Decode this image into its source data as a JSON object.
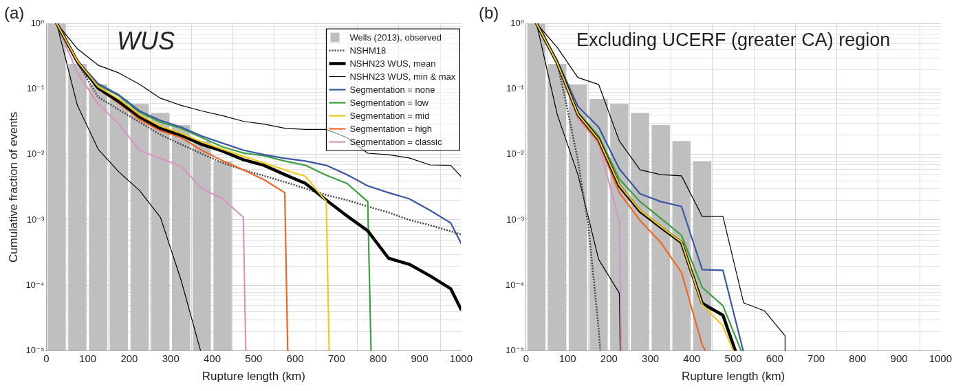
{
  "chart_data": [
    {
      "type": "line",
      "title": "(a)",
      "annotations": [
        "WUS"
      ],
      "xlabel": "Rupture length (km)",
      "ylabel": "Cumulative fraction of events",
      "xlim": [
        0,
        1000
      ],
      "xticks": [
        0,
        100,
        200,
        300,
        400,
        500,
        600,
        700,
        800,
        900,
        1000
      ],
      "ylim": [
        1e-05,
        1
      ],
      "yticks": [
        {
          "value": 1,
          "label": "10⁰"
        },
        {
          "value": 0.1,
          "label": "10⁻¹"
        },
        {
          "value": 0.01,
          "label": "10⁻²"
        },
        {
          "value": 0.001,
          "label": "10⁻³"
        },
        {
          "value": 0.0001,
          "label": "10⁻⁴"
        },
        {
          "value": 1e-05,
          "label": "10⁻⁵"
        }
      ],
      "log": true,
      "grid": true,
      "legend": "top right",
      "marker": "none",
      "series": [
        {
          "name": "Wells (2013), observed",
          "type": "bar",
          "color": "#bfbfbf",
          "x": [
            25,
            75,
            125,
            175,
            225,
            275,
            325,
            375,
            425
          ],
          "values": [
            1,
            0.24,
            0.117,
            0.07,
            0.059,
            0.043,
            0.028,
            0.016,
            0.0078
          ]
        },
        {
          "name": "NSHM18",
          "color": "#444444",
          "line_style": "dotted",
          "x": [
            25,
            75,
            125,
            175,
            225,
            275,
            325,
            375,
            425,
            475,
            525,
            575,
            625,
            675,
            725,
            775,
            825,
            875,
            925,
            975,
            1000
          ],
          "values": [
            1,
            0.25,
            0.075,
            0.048,
            0.031,
            0.02,
            0.0142,
            0.0102,
            0.0074,
            0.0058,
            0.0047,
            0.0038,
            0.003,
            0.0024,
            0.002,
            0.0016,
            0.0013,
            0.001,
            0.00083,
            0.00067,
            0.0006
          ]
        },
        {
          "name": "NSHN23 WUS, mean",
          "color": "#000000",
          "x": [
            25,
            75,
            125,
            175,
            225,
            275,
            325,
            375,
            425,
            475,
            525,
            575,
            625,
            675,
            725,
            775,
            825,
            875,
            925,
            975,
            1000
          ],
          "values": [
            1,
            0.26,
            0.103,
            0.064,
            0.0375,
            0.025,
            0.0196,
            0.0142,
            0.0112,
            0.0083,
            0.0068,
            0.0049,
            0.0036,
            0.002,
            0.00115,
            0.00068,
            0.00026,
            0.00021,
            0.00014,
            8.9e-05,
            4.3e-05
          ]
        },
        {
          "name": "NSHN23 WUS, min & max",
          "color": "#000000",
          "x": [
            25,
            75,
            125,
            175,
            225,
            275,
            325,
            375,
            425,
            475,
            525,
            575,
            625,
            675,
            725,
            775,
            825,
            875,
            925,
            975,
            1000
          ],
          "values": [
            1,
            0.41,
            0.23,
            0.175,
            0.117,
            0.072,
            0.056,
            0.046,
            0.039,
            0.032,
            0.029,
            0.025,
            0.024,
            0.024,
            0.018,
            0.0104,
            0.0099,
            0.0088,
            0.0069,
            0.0068,
            0.0046
          ]
        },
        {
          "color": "#000000",
          "x": [
            25,
            75,
            125,
            175,
            225,
            275,
            325,
            372
          ],
          "values": [
            1,
            0.056,
            0.012,
            0.0054,
            0.0028,
            0.0011,
            0.00012,
            1e-05
          ]
        },
        {
          "name": "Segmentation = none",
          "color": "#3a56a5",
          "x": [
            25,
            75,
            125,
            175,
            225,
            275,
            325,
            375,
            425,
            475,
            525,
            575,
            625,
            675,
            725,
            775,
            825,
            875,
            925,
            975,
            1000
          ],
          "values": [
            1,
            0.27,
            0.12,
            0.081,
            0.046,
            0.033,
            0.026,
            0.019,
            0.0148,
            0.0116,
            0.0099,
            0.0087,
            0.0079,
            0.0068,
            0.0049,
            0.0033,
            0.0026,
            0.0021,
            0.0014,
            0.0009,
            0.00044
          ]
        },
        {
          "name": "Segmentation = low",
          "color": "#3aa040",
          "x": [
            25,
            75,
            125,
            175,
            225,
            275,
            325,
            375,
            425,
            475,
            525,
            575,
            625,
            675,
            725,
            775,
            783
          ],
          "values": [
            1,
            0.27,
            0.115,
            0.078,
            0.044,
            0.031,
            0.025,
            0.018,
            0.013,
            0.0105,
            0.0095,
            0.0079,
            0.0068,
            0.0048,
            0.0036,
            0.0019,
            1e-05
          ]
        },
        {
          "name": "Segmentation = mid",
          "color": "#f2c81c",
          "x": [
            25,
            75,
            125,
            175,
            225,
            275,
            325,
            375,
            425,
            475,
            525,
            575,
            625,
            675,
            682
          ],
          "values": [
            1,
            0.265,
            0.108,
            0.07,
            0.04,
            0.027,
            0.021,
            0.0155,
            0.012,
            0.0093,
            0.0074,
            0.0058,
            0.0046,
            0.0019,
            1e-05
          ]
        },
        {
          "name": "Segmentation = high",
          "color": "#f26522",
          "x": [
            25,
            75,
            125,
            175,
            225,
            275,
            325,
            375,
            425,
            475,
            525,
            575,
            582
          ],
          "values": [
            1,
            0.25,
            0.1,
            0.06,
            0.034,
            0.023,
            0.018,
            0.0115,
            0.008,
            0.0058,
            0.0041,
            0.0026,
            1e-05
          ]
        },
        {
          "name": "Segmentation = classic",
          "color": "#d994c4",
          "x": [
            25,
            75,
            125,
            175,
            225,
            275,
            325,
            375,
            425,
            475,
            481
          ],
          "values": [
            1,
            0.175,
            0.059,
            0.029,
            0.0115,
            0.0087,
            0.0066,
            0.003,
            0.0021,
            0.0011,
            1e-05
          ]
        }
      ]
    },
    {
      "type": "line",
      "title": "(b)",
      "annotations": [
        "Excluding UCERF (greater CA) region"
      ],
      "xlabel": "Rupture length (km)",
      "xlim": [
        0,
        1000
      ],
      "xticks": [
        0,
        100,
        200,
        300,
        400,
        500,
        600,
        700,
        800,
        900,
        1000
      ],
      "ylim": [
        1e-05,
        1
      ],
      "yticks": [
        {
          "value": 1,
          "label": "10⁰"
        },
        {
          "value": 0.1,
          "label": "10⁻¹"
        },
        {
          "value": 0.01,
          "label": "10⁻²"
        },
        {
          "value": 0.001,
          "label": "10⁻³"
        },
        {
          "value": 0.0001,
          "label": "10⁻⁴"
        },
        {
          "value": 1e-05,
          "label": "10⁻⁵"
        }
      ],
      "log": true,
      "grid": true,
      "marker": "none",
      "series": [
        {
          "type": "bar",
          "color": "#bfbfbf",
          "x": [
            25,
            75,
            125,
            175,
            225,
            275,
            325,
            375,
            425
          ],
          "values": [
            1,
            0.24,
            0.117,
            0.07,
            0.059,
            0.043,
            0.028,
            0.016,
            0.0078
          ]
        },
        {
          "color": "#444444",
          "line_style": "dotted",
          "x": [
            25,
            75,
            100,
            125,
            150,
            175,
            179
          ],
          "values": [
            1,
            0.25,
            0.048,
            0.0081,
            0.00083,
            2.2e-05,
            1e-05
          ]
        },
        {
          "color": "#000000",
          "x": [
            25,
            75,
            125,
            175,
            225,
            275,
            325,
            375,
            425,
            475,
            505
          ],
          "values": [
            1,
            0.25,
            0.041,
            0.017,
            0.0033,
            0.00135,
            0.00077,
            0.00045,
            5.3e-05,
            3.5e-05,
            1e-05
          ]
        },
        {
          "color": "#000000",
          "x": [
            25,
            75,
            125,
            175,
            225,
            275,
            325,
            375,
            425,
            475,
            525,
            575,
            625,
            625
          ],
          "values": [
            1,
            0.43,
            0.149,
            0.117,
            0.016,
            0.0058,
            0.0049,
            0.0047,
            0.00113,
            0.00113,
            5.4e-05,
            4.1e-05,
            1.7e-05,
            1e-05
          ]
        },
        {
          "color": "#000000",
          "x": [
            25,
            75,
            125,
            175,
            225,
            227
          ],
          "values": [
            1,
            0.041,
            0.0049,
            0.00025,
            7.6e-05,
            1e-05
          ]
        },
        {
          "color": "#3a56a5",
          "x": [
            25,
            75,
            125,
            175,
            225,
            275,
            325,
            375,
            425,
            475,
            524
          ],
          "values": [
            1,
            0.27,
            0.054,
            0.026,
            0.006,
            0.0025,
            0.0019,
            0.0016,
            0.000174,
            0.00017,
            1e-05
          ]
        },
        {
          "color": "#3aa040",
          "x": [
            25,
            75,
            125,
            175,
            225,
            275,
            325,
            375,
            425,
            475,
            519
          ],
          "values": [
            1,
            0.26,
            0.044,
            0.019,
            0.0042,
            0.0019,
            0.00106,
            0.00058,
            9.3e-05,
            4.9e-05,
            1e-05
          ]
        },
        {
          "color": "#f2c81c",
          "x": [
            25,
            75,
            125,
            175,
            225,
            275,
            325,
            375,
            425,
            475,
            500
          ],
          "values": [
            1,
            0.25,
            0.041,
            0.017,
            0.0034,
            0.0014,
            0.00079,
            0.00046,
            5.1e-05,
            2.4e-05,
            1e-05
          ]
        },
        {
          "color": "#f26522",
          "x": [
            25,
            75,
            125,
            175,
            225,
            275,
            325,
            375,
            425,
            433
          ],
          "values": [
            1,
            0.25,
            0.038,
            0.0154,
            0.0026,
            0.00098,
            0.00045,
            0.000158,
            1.23e-05,
            1e-05
          ]
        },
        {
          "color": "#d994c4",
          "x": [
            25,
            75,
            125,
            175,
            225,
            230
          ],
          "values": [
            1,
            0.25,
            0.035,
            0.0148,
            0.00094,
            1e-05
          ]
        }
      ]
    }
  ]
}
